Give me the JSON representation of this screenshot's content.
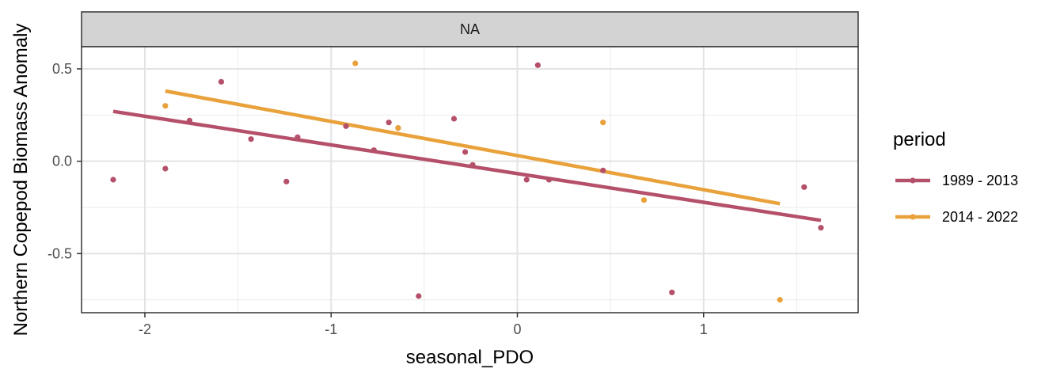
{
  "chart_data": {
    "type": "scatter",
    "facet_label": "NA",
    "xlabel": "seasonal_PDO",
    "ylabel": "Northern Copepod Biomass Anomaly",
    "xlim": [
      -2.34,
      1.83
    ],
    "ylim": [
      -0.82,
      0.62
    ],
    "x_ticks": [
      -2,
      -1,
      0,
      1
    ],
    "x_tick_labels": [
      "-2",
      "-1",
      "0",
      "1"
    ],
    "y_ticks": [
      -0.5,
      0.0,
      0.5
    ],
    "y_tick_labels": [
      "-0.5",
      "0.0",
      "0.5"
    ],
    "grid": true,
    "legend": {
      "title": "period",
      "position": "right"
    },
    "series": [
      {
        "name": "1989 - 2013",
        "color": "#B5506A",
        "points": [
          [
            -2.17,
            -0.1
          ],
          [
            -1.89,
            -0.04
          ],
          [
            -1.76,
            0.22
          ],
          [
            -1.59,
            0.43
          ],
          [
            -1.43,
            0.12
          ],
          [
            -1.24,
            -0.11
          ],
          [
            -1.18,
            0.13
          ],
          [
            -0.92,
            0.19
          ],
          [
            -0.69,
            0.21
          ],
          [
            -0.77,
            0.06
          ],
          [
            -0.64,
            0.18
          ],
          [
            -0.53,
            -0.73
          ],
          [
            -0.34,
            0.23
          ],
          [
            -0.28,
            0.05
          ],
          [
            -0.24,
            -0.02
          ],
          [
            0.05,
            -0.1
          ],
          [
            0.11,
            0.52
          ],
          [
            0.17,
            -0.1
          ],
          [
            0.46,
            -0.05
          ],
          [
            0.83,
            -0.71
          ],
          [
            1.54,
            -0.14
          ],
          [
            1.63,
            -0.36
          ]
        ],
        "fit": [
          [
            -2.17,
            0.27
          ],
          [
            1.63,
            -0.32
          ]
        ]
      },
      {
        "name": "2014 - 2022",
        "color": "#E9A23B",
        "points": [
          [
            -1.89,
            0.3
          ],
          [
            -0.87,
            0.53
          ],
          [
            -0.64,
            0.18
          ],
          [
            0.46,
            0.21
          ],
          [
            0.68,
            -0.21
          ],
          [
            1.41,
            -0.75
          ]
        ],
        "fit": [
          [
            -1.89,
            0.38
          ],
          [
            1.41,
            -0.23
          ]
        ]
      }
    ]
  }
}
